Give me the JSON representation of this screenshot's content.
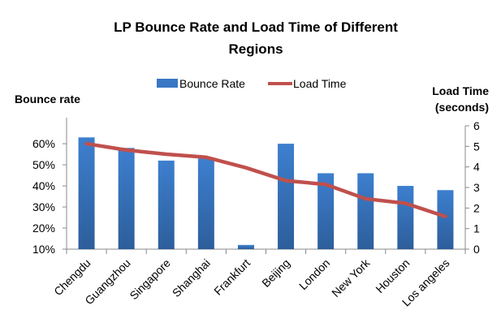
{
  "chart_data": {
    "type": "bar+line",
    "title": "LP Bounce Rate and Load Time of Different Regions",
    "title_lines": [
      "LP Bounce Rate and Load Time of Different",
      "Regions"
    ],
    "categories": [
      "Chengdu",
      "Guangzhou",
      "Singapore",
      "Shanghai",
      "Frankfurt",
      "Beijing",
      "London",
      "New York",
      "Houston",
      "Los angeles"
    ],
    "series": [
      {
        "name": "Bounce Rate",
        "type": "bar",
        "axis": "left",
        "color": "#3a77c4",
        "values": [
          63,
          58,
          52,
          53,
          12,
          60,
          46,
          46,
          40,
          38
        ]
      },
      {
        "name": "Load Time",
        "type": "line",
        "axis": "right",
        "color": "#c0504d",
        "values": [
          5.13,
          4.82,
          4.62,
          4.47,
          3.96,
          3.33,
          3.15,
          2.45,
          2.23,
          1.59
        ]
      }
    ],
    "ylabel_left": "Bounce rate",
    "ylabel_right_lines": [
      "Load Time",
      "(seconds)"
    ],
    "yleft_ticks": [
      "10%",
      "20%",
      "30%",
      "40%",
      "50%",
      "60%"
    ],
    "yleft_tick_values": [
      10,
      20,
      30,
      40,
      50,
      60
    ],
    "yleft_lim": [
      10,
      68.5
    ],
    "yright_ticks": [
      "0",
      "1",
      "2",
      "3",
      "4",
      "5",
      "6"
    ],
    "yright_tick_values": [
      0,
      1,
      2,
      3,
      4,
      5,
      6
    ],
    "yright_lim": [
      0,
      6
    ],
    "legend_position": "top",
    "grid": false
  }
}
